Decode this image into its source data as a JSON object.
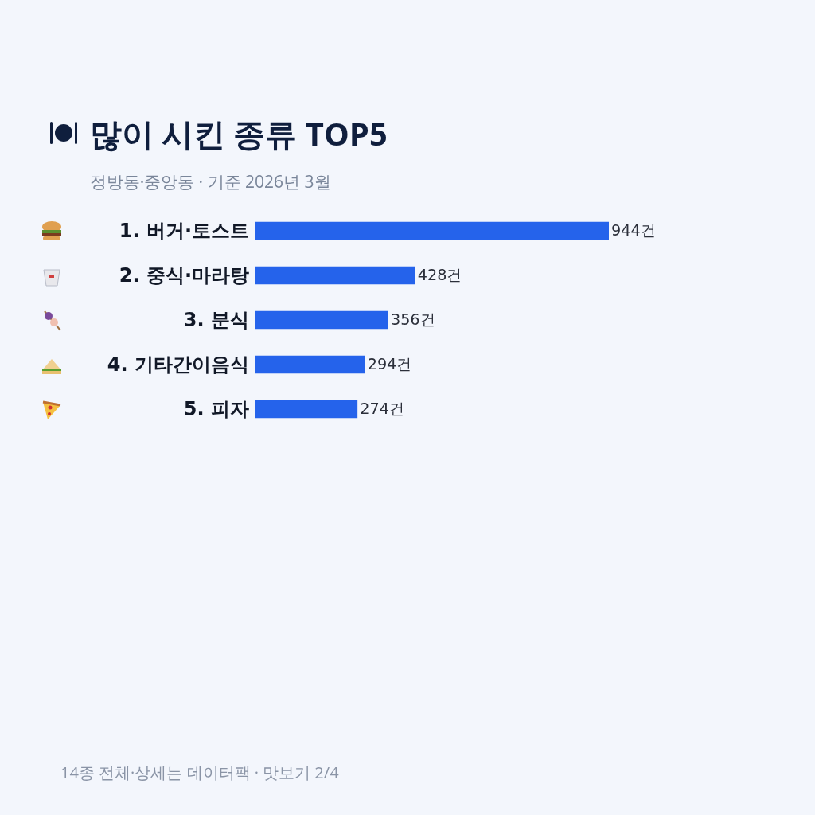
{
  "chart_data": {
    "type": "bar",
    "orientation": "horizontal",
    "title": "많이 시킨 종류 TOP5",
    "subtitle": "정방동·중앙동 · 기준 2026년 3월",
    "categories": [
      "1. 버거·토스트",
      "2. 중식·마라탕",
      "3. 분식",
      "4. 기타간이음식",
      "5. 피자"
    ],
    "values": [
      944,
      428,
      356,
      294,
      274
    ],
    "color": "#2563eb",
    "value_labels": [
      "944건",
      "428건",
      "356건",
      "294건",
      "274건"
    ],
    "annotations": [
      "14종 전체·상세는 데이터팩 · 맛보기 2/4"
    ]
  }
}
